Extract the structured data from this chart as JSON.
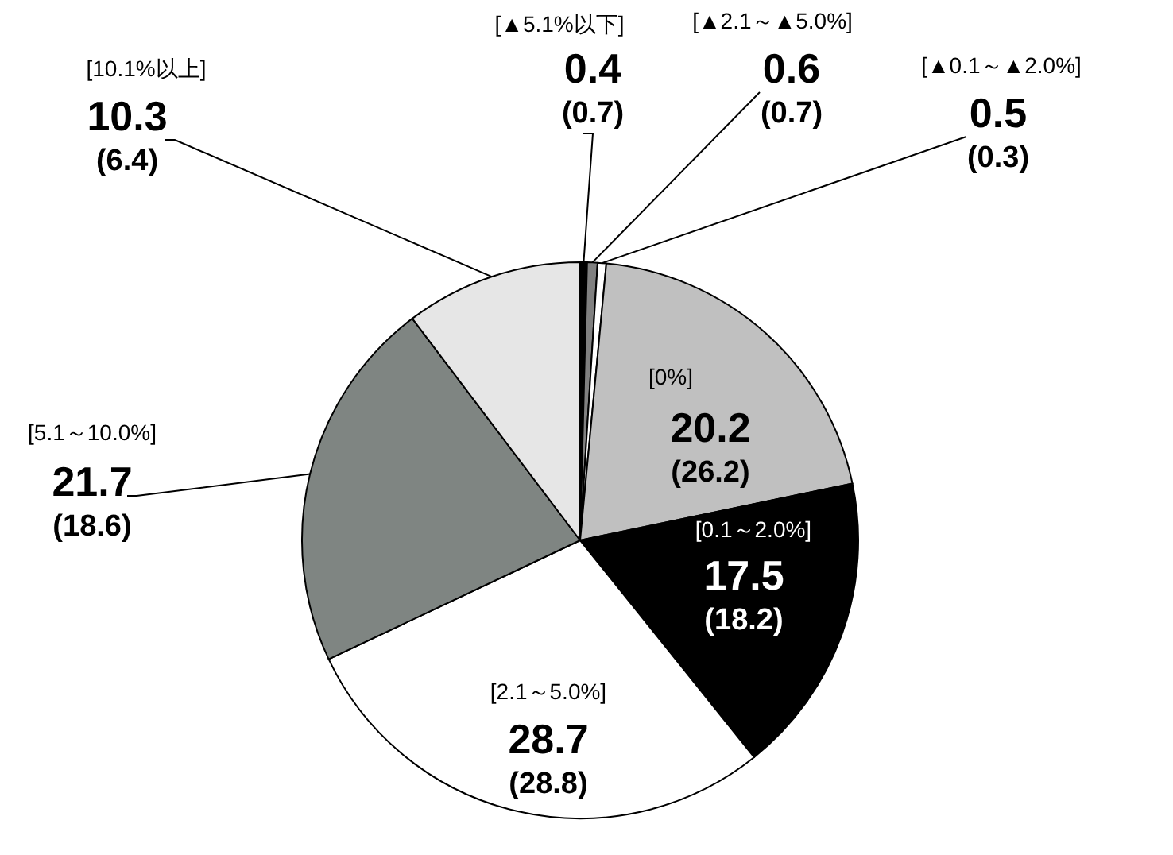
{
  "chart_data": {
    "type": "pie",
    "categories": [
      "[▲5.1%以下]",
      "[▲2.1～▲5.0%]",
      "[▲0.1～▲2.0%]",
      "[0%]",
      "[0.1～2.0%]",
      "[2.1～5.0%]",
      "[5.1～10.0%]",
      "[10.1%以上]"
    ],
    "values": [
      0.4,
      0.6,
      0.5,
      20.2,
      17.5,
      28.7,
      21.7,
      10.3
    ],
    "value_labels": [
      "0.4\n(0.7)",
      "0.6\n(0.7)",
      "0.5\n(0.3)",
      "20.2\n(26.2)",
      "17.5\n(18.2)",
      "28.7\n(28.8)",
      "21.7\n(18.6)",
      "10.3\n(6.4)"
    ],
    "colors": [
      "#000000",
      "#808080",
      "#ffffff",
      "#c0c0c0",
      "#000000",
      "#ffffff",
      "#7f8582",
      "#e6e6e6"
    ]
  }
}
